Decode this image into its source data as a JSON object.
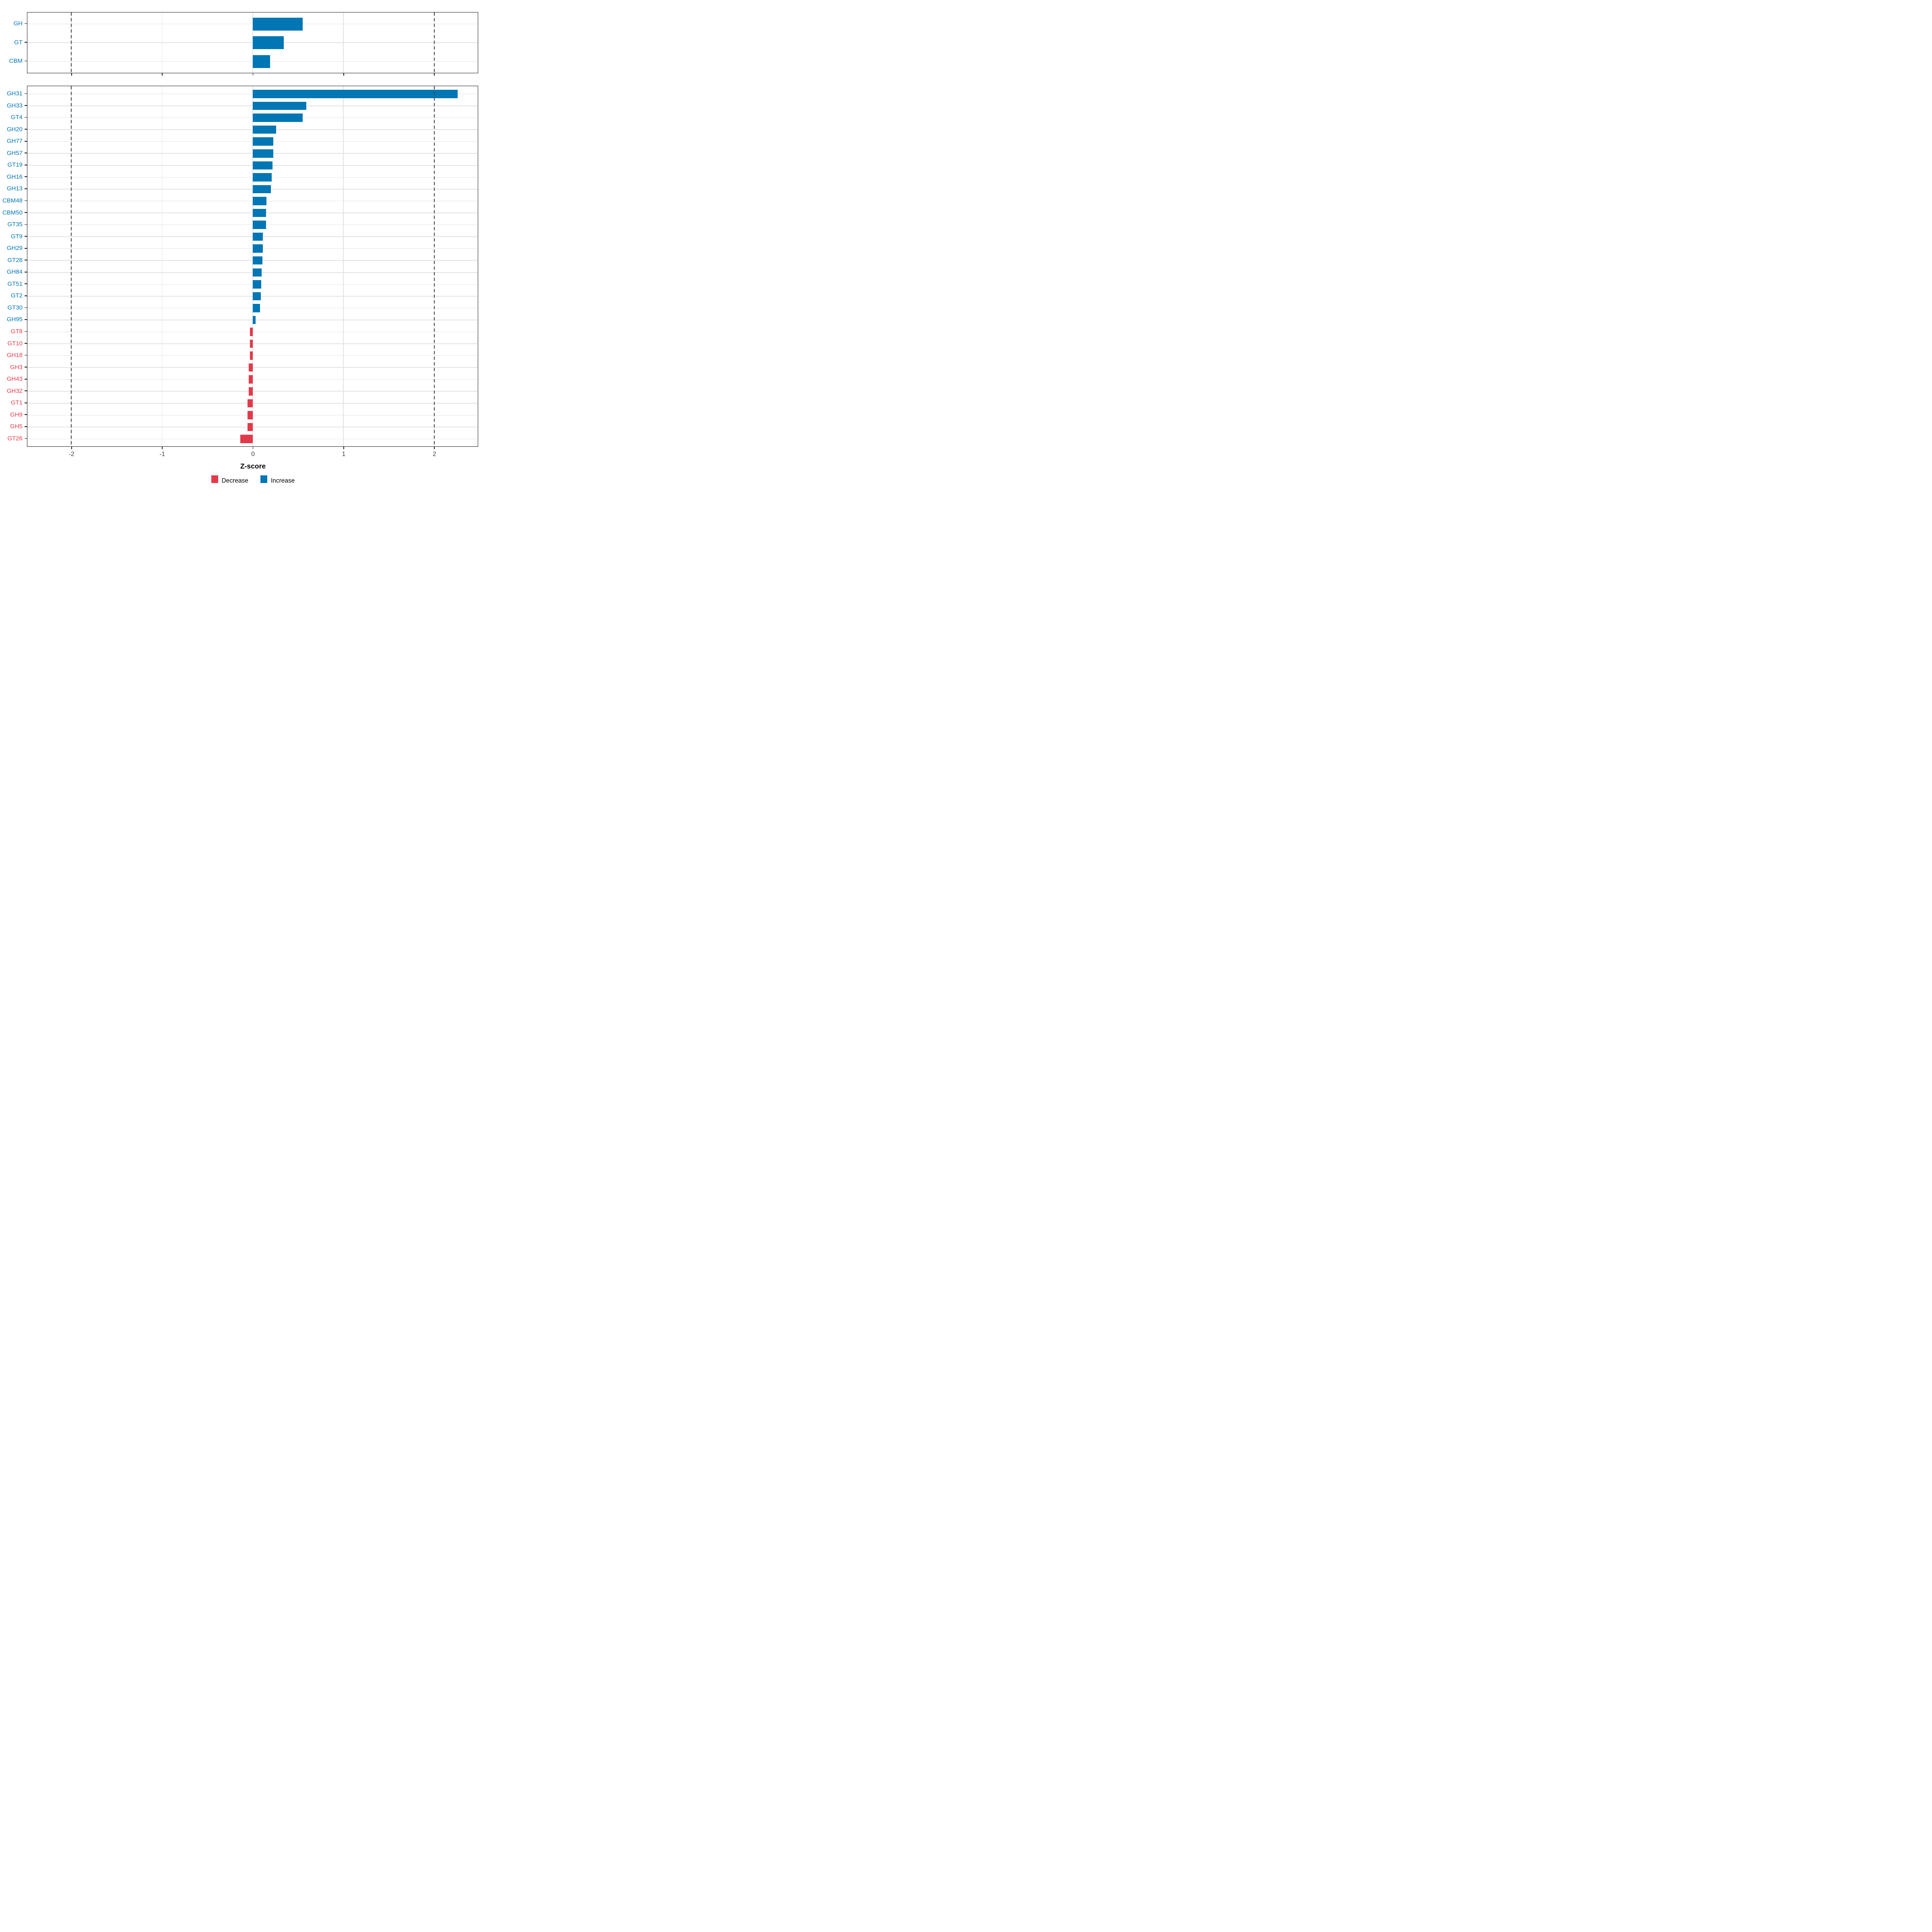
{
  "chart_data": {
    "type": "bar",
    "orientation": "horizontal",
    "title": "",
    "xlabel": "Z-score",
    "xlim": [
      -2.48,
      2.48
    ],
    "x_ticks": [
      -2,
      -1,
      0,
      1,
      2
    ],
    "x_tick_labels": [
      "-2",
      "-1",
      "0",
      "1",
      "2"
    ],
    "dashed_vlines": [
      -2,
      2
    ],
    "grid": true,
    "legend_position": "bottom",
    "legend": [
      {
        "label": "Decrease",
        "key": "decrease",
        "color": "#e4394b"
      },
      {
        "label": "Increase",
        "key": "increase",
        "color": "#0076b4"
      }
    ],
    "colors": {
      "increase": "#0076b4",
      "decrease": "#e4394b",
      "gridline": "#e3e3e3",
      "dashed_line": "#424242",
      "axis_text": "#404040",
      "panel_border": "#1a1a1a"
    },
    "panels": [
      {
        "id": "cazyme-classes",
        "categories": [
          "GH",
          "GT",
          "CBM"
        ],
        "values": [
          0.55,
          0.34,
          0.19
        ]
      },
      {
        "id": "cazyme-families",
        "categories": [
          "GH31",
          "GH33",
          "GT4",
          "GH20",
          "GH77",
          "GH57",
          "GT19",
          "GH16",
          "GH13",
          "CBM48",
          "CBM50",
          "GT35",
          "GT9",
          "GH29",
          "GT28",
          "GH84",
          "GT51",
          "GT2",
          "GT30",
          "GH95",
          "GT8",
          "GT10",
          "GH18",
          "GH3",
          "GH43",
          "GH32",
          "GT1",
          "GH9",
          "GH5",
          "GT26"
        ],
        "values": [
          2.26,
          0.59,
          0.55,
          0.26,
          0.225,
          0.225,
          0.22,
          0.21,
          0.2,
          0.15,
          0.145,
          0.145,
          0.11,
          0.11,
          0.105,
          0.1,
          0.095,
          0.09,
          0.08,
          0.03,
          -0.03,
          -0.03,
          -0.03,
          -0.042,
          -0.045,
          -0.045,
          -0.055,
          -0.055,
          -0.056,
          -0.135
        ]
      }
    ]
  }
}
